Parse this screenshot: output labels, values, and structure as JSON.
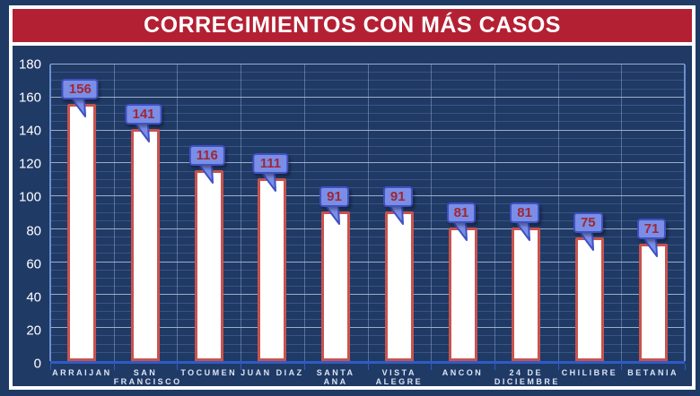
{
  "title": "CORREGIMIENTOS CON MÁS CASOS",
  "colors": {
    "background": "#203A66",
    "frame": "#FFFFFF",
    "banner_bg": "#B42033",
    "banner_text": "#FFFFFF",
    "bar_fill": "#FFFFFF",
    "bar_border": "#C9534E",
    "label_box_fill": "#7A8EE8",
    "label_box_border": "#3F51C1",
    "label_text": "#A02833",
    "axis_line": "#2E5CC5",
    "tick_text": "#FFFFFF",
    "category_text": "#DCE5F5"
  },
  "chart_data": {
    "type": "bar",
    "title": "CORREGIMIENTOS CON MÁS CASOS",
    "categories": [
      "ARRAIJAN",
      "SAN FRANCISCO",
      "TOCUMEN",
      "JUAN DIAZ",
      "SANTA ANA",
      "VISTA ALEGRE",
      "ANCON",
      "24 DE DICIEMBRE",
      "CHILIBRE",
      "BETANIA"
    ],
    "category_lines": [
      [
        "ARRAIJAN"
      ],
      [
        "SAN",
        "FRANCISCO"
      ],
      [
        "TOCUMEN"
      ],
      [
        "JUAN DIAZ"
      ],
      [
        "SANTA ANA"
      ],
      [
        "VISTA",
        "ALEGRE"
      ],
      [
        "ANCON"
      ],
      [
        "24 DE",
        "DICIEMBRE"
      ],
      [
        "CHILIBRE"
      ],
      [
        "BETANIA"
      ]
    ],
    "values": [
      156,
      141,
      116,
      111,
      91,
      91,
      81,
      81,
      75,
      71
    ],
    "xlabel": "",
    "ylabel": "",
    "ylim": [
      0,
      180
    ],
    "y_tick_labels": [
      0,
      20,
      40,
      60,
      80,
      100,
      120,
      140,
      160,
      180
    ],
    "y_major_step": 20,
    "y_minor_step": 5,
    "grid": true,
    "legend": false,
    "data_labels": true
  }
}
